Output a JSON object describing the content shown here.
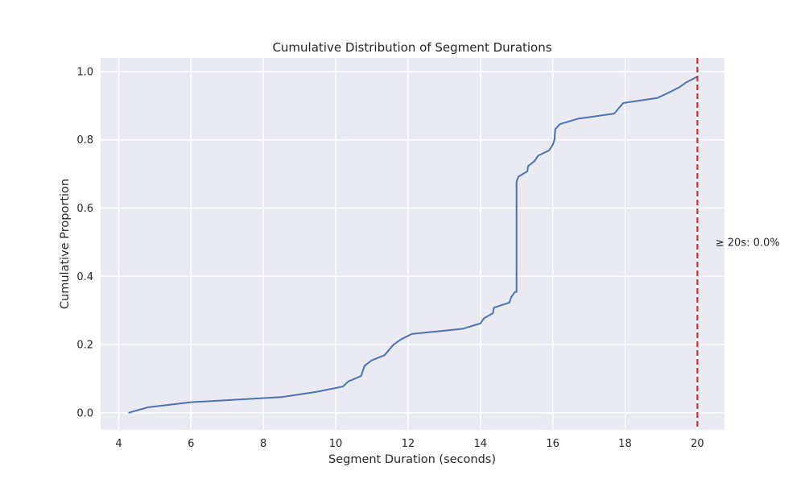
{
  "chart_data": {
    "type": "line",
    "title": "Cumulative Distribution of Segment Durations",
    "xlabel": "Segment Duration (seconds)",
    "ylabel": "Cumulative Proportion",
    "xlim": [
      3.5,
      20.75
    ],
    "ylim": [
      -0.05,
      1.04
    ],
    "xticks": [
      4,
      6,
      8,
      10,
      12,
      14,
      16,
      18,
      20
    ],
    "yticks": [
      0.0,
      0.2,
      0.4,
      0.6,
      0.8,
      1.0
    ],
    "grid": true,
    "series": [
      {
        "name": "",
        "color": "#4c72b0",
        "x": [
          4.27,
          4.8,
          6.0,
          8.5,
          9.5,
          10.2,
          10.35,
          10.7,
          10.8,
          11.0,
          11.35,
          11.6,
          11.8,
          12.1,
          13.5,
          14.0,
          14.1,
          14.35,
          14.37,
          14.8,
          14.85,
          14.95,
          15.0,
          15.0,
          15.05,
          15.3,
          15.32,
          15.5,
          15.6,
          15.9,
          16.0,
          16.05,
          16.07,
          16.2,
          16.7,
          17.7,
          17.95,
          18.9,
          19.2,
          19.5,
          19.7,
          20.0
        ],
        "y": [
          0.0,
          0.016,
          0.031,
          0.046,
          0.062,
          0.077,
          0.092,
          0.108,
          0.138,
          0.154,
          0.169,
          0.2,
          0.215,
          0.231,
          0.246,
          0.262,
          0.277,
          0.292,
          0.308,
          0.323,
          0.338,
          0.354,
          0.354,
          0.677,
          0.692,
          0.708,
          0.723,
          0.738,
          0.754,
          0.769,
          0.785,
          0.8,
          0.831,
          0.846,
          0.862,
          0.877,
          0.908,
          0.923,
          0.938,
          0.954,
          0.969,
          0.985
        ]
      }
    ],
    "reference_line": {
      "x": 20,
      "color": "#e41a1c",
      "style": "dashed"
    },
    "annotation": {
      "text": "≥ 20s: 0.0%",
      "x": 20.5,
      "y": 0.5
    }
  }
}
